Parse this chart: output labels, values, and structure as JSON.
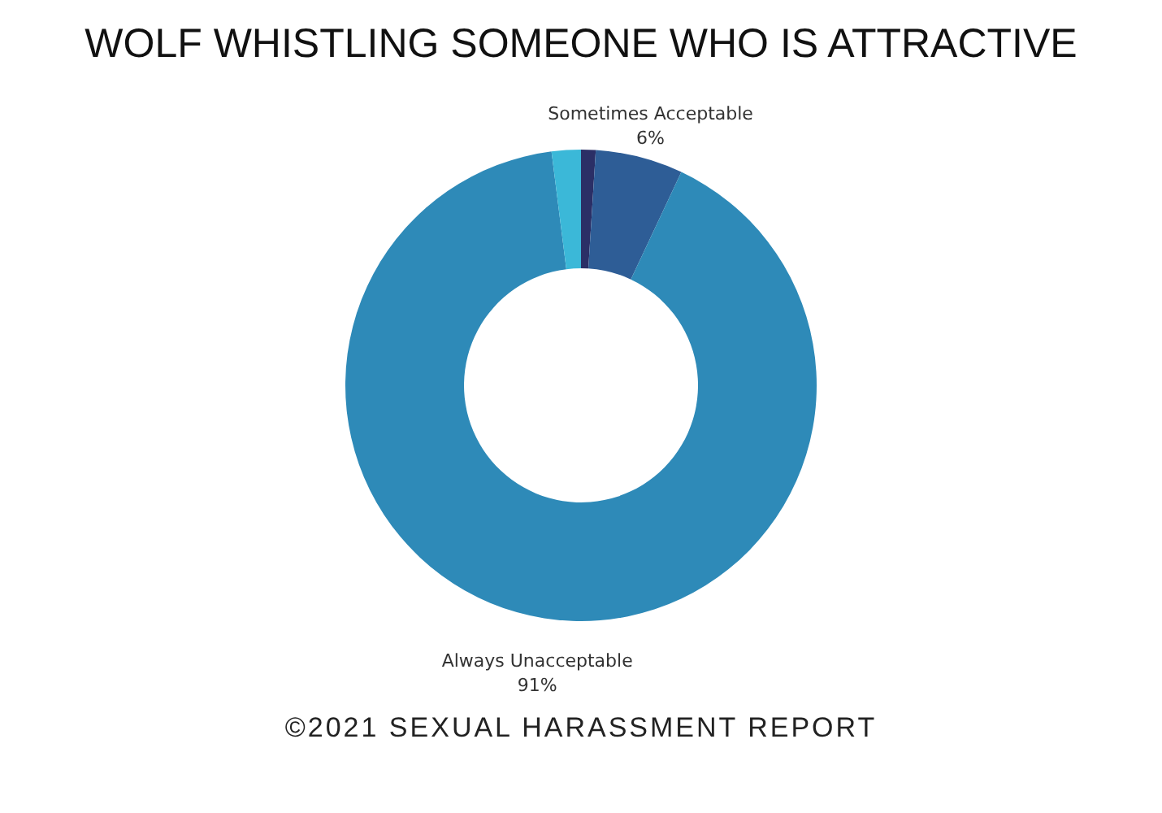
{
  "chart_data": {
    "type": "donut",
    "title": "WOLF WHISTLING SOMEONE WHO IS ATTRACTIVE",
    "categories": [
      null,
      "Sometimes Acceptable",
      "Always Unacceptable",
      null
    ],
    "values": [
      1,
      6,
      91,
      2
    ],
    "colors": [
      "#2b2f66",
      "#2e5d96",
      "#2e8ab8",
      "#3bb8d8"
    ],
    "value_labels": [
      null,
      "6%",
      "91%",
      null
    ],
    "annotations": [
      "©2021 SEXUAL HARASSMENT REPORT"
    ],
    "legend": false
  }
}
